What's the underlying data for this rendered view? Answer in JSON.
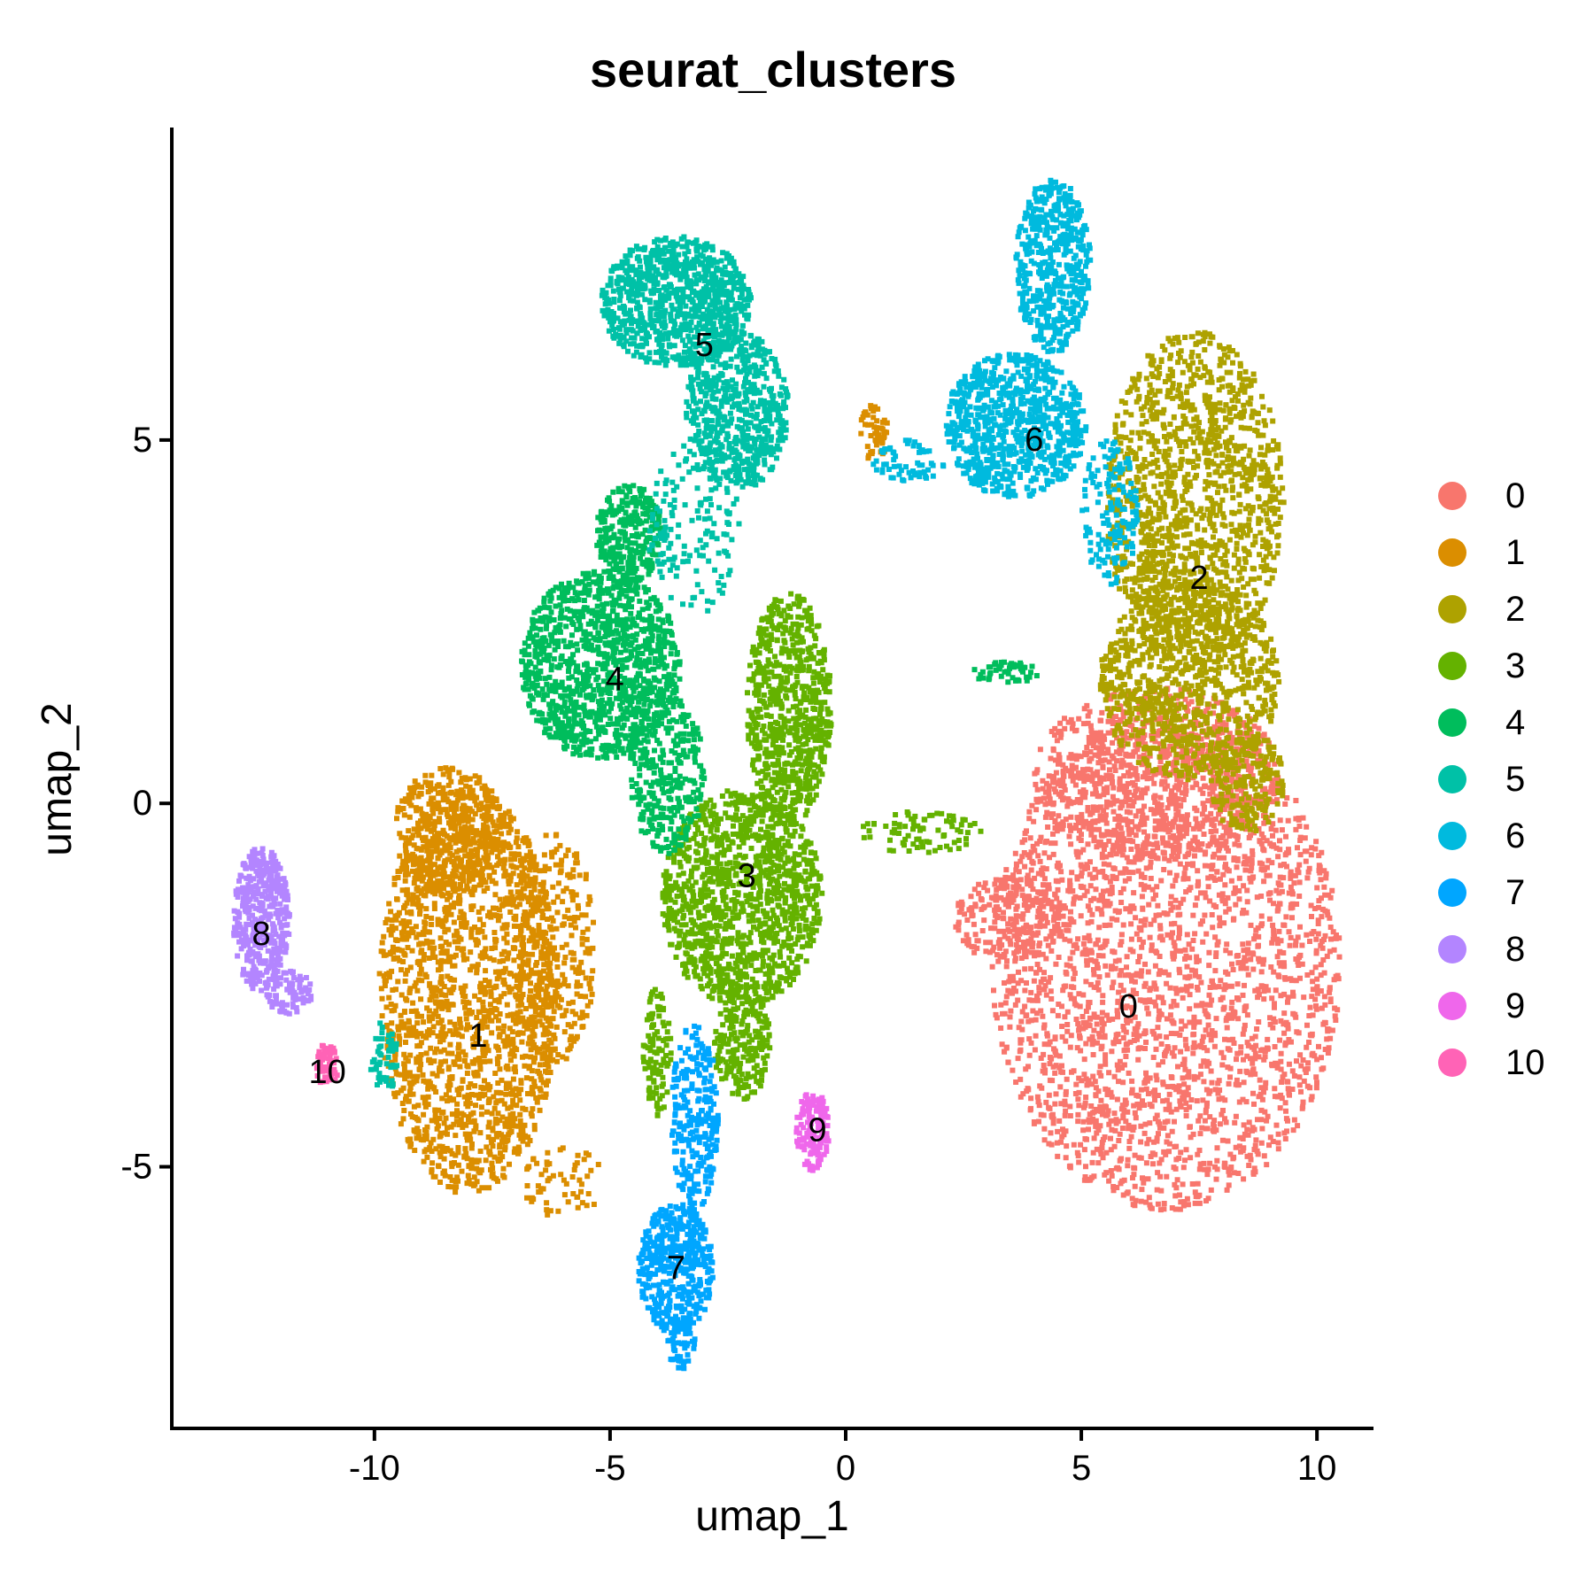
{
  "chart_data": {
    "type": "scatter",
    "title": "seurat_clusters",
    "xlabel": "umap_1",
    "ylabel": "umap_2",
    "xlim": [
      -14.3,
      11.2
    ],
    "ylim": [
      -8.6,
      9.3
    ],
    "xticks": [
      -10,
      -5,
      0,
      5,
      10
    ],
    "yticks": [
      -5,
      0,
      5
    ],
    "xtick_labels": [
      "-10",
      "-5",
      "0",
      "5",
      "10"
    ],
    "ytick_labels": [
      "-5",
      "0",
      "5"
    ],
    "grid": false,
    "legend_position": "right",
    "series": [
      {
        "name": "0",
        "color": "#F8766D",
        "label_x": 6.0,
        "label_y": -2.8,
        "blobs": [
          {
            "cx": 6.8,
            "cy": -2.2,
            "rx": 3.7,
            "ry": 3.4,
            "n": 2600
          },
          {
            "cx": 6.6,
            "cy": 0.4,
            "rx": 2.6,
            "ry": 1.2,
            "n": 700
          },
          {
            "cx": 3.5,
            "cy": -1.6,
            "rx": 1.2,
            "ry": 0.6,
            "n": 200
          }
        ]
      },
      {
        "name": "1",
        "color": "#DB8E00",
        "label_x": -7.8,
        "label_y": -3.2,
        "blobs": [
          {
            "cx": -8.0,
            "cy": -2.6,
            "rx": 1.9,
            "ry": 2.8,
            "n": 1700
          },
          {
            "cx": -8.4,
            "cy": -0.4,
            "rx": 1.2,
            "ry": 0.9,
            "n": 400
          },
          {
            "cx": -6.2,
            "cy": -2.0,
            "rx": 0.9,
            "ry": 1.6,
            "n": 300
          },
          {
            "cx": -6.0,
            "cy": -5.2,
            "rx": 0.9,
            "ry": 0.5,
            "n": 60
          },
          {
            "cx": 0.6,
            "cy": 5.1,
            "rx": 0.3,
            "ry": 0.4,
            "n": 50
          }
        ]
      },
      {
        "name": "2",
        "color": "#AEA200",
        "label_x": 7.5,
        "label_y": 3.1,
        "blobs": [
          {
            "cx": 7.4,
            "cy": 4.2,
            "rx": 1.9,
            "ry": 2.3,
            "n": 1300
          },
          {
            "cx": 7.3,
            "cy": 1.7,
            "rx": 1.9,
            "ry": 1.4,
            "n": 900
          },
          {
            "cx": 8.5,
            "cy": 0.3,
            "rx": 0.8,
            "ry": 0.7,
            "n": 200
          }
        ]
      },
      {
        "name": "3",
        "color": "#64B200",
        "label_x": -2.1,
        "label_y": -1.0,
        "blobs": [
          {
            "cx": -2.2,
            "cy": -1.3,
            "rx": 1.7,
            "ry": 1.5,
            "n": 1200
          },
          {
            "cx": -1.2,
            "cy": 1.3,
            "rx": 0.9,
            "ry": 1.6,
            "n": 700
          },
          {
            "cx": -2.2,
            "cy": -3.3,
            "rx": 0.6,
            "ry": 0.8,
            "n": 200
          },
          {
            "cx": -4.0,
            "cy": -3.4,
            "rx": 0.3,
            "ry": 0.9,
            "n": 100
          },
          {
            "cx": 1.6,
            "cy": -0.4,
            "rx": 1.3,
            "ry": 0.3,
            "n": 80
          }
        ]
      },
      {
        "name": "4",
        "color": "#00BD5C",
        "label_x": -4.9,
        "label_y": 1.7,
        "blobs": [
          {
            "cx": -5.2,
            "cy": 1.9,
            "rx": 1.7,
            "ry": 1.3,
            "n": 1100
          },
          {
            "cx": -4.6,
            "cy": 3.7,
            "rx": 0.7,
            "ry": 0.7,
            "n": 300
          },
          {
            "cx": -3.8,
            "cy": 0.4,
            "rx": 0.8,
            "ry": 1.1,
            "n": 300
          },
          {
            "cx": 3.4,
            "cy": 1.8,
            "rx": 0.7,
            "ry": 0.15,
            "n": 50
          }
        ]
      },
      {
        "name": "5",
        "color": "#00C1A7",
        "label_x": -3.0,
        "label_y": 6.3,
        "blobs": [
          {
            "cx": -3.6,
            "cy": 6.9,
            "rx": 1.6,
            "ry": 0.9,
            "n": 900
          },
          {
            "cx": -2.3,
            "cy": 5.4,
            "rx": 1.1,
            "ry": 1.1,
            "n": 600
          },
          {
            "cx": -3.2,
            "cy": 3.8,
            "rx": 1.0,
            "ry": 1.2,
            "n": 150
          },
          {
            "cx": -9.8,
            "cy": -3.5,
            "rx": 0.3,
            "ry": 0.5,
            "n": 50
          }
        ]
      },
      {
        "name": "6",
        "color": "#00BADE",
        "label_x": 4.0,
        "label_y": 5.0,
        "blobs": [
          {
            "cx": 3.6,
            "cy": 5.2,
            "rx": 1.5,
            "ry": 1.0,
            "n": 800
          },
          {
            "cx": 4.4,
            "cy": 7.4,
            "rx": 0.8,
            "ry": 1.2,
            "n": 500
          },
          {
            "cx": 5.6,
            "cy": 4.0,
            "rx": 0.6,
            "ry": 1.0,
            "n": 150
          },
          {
            "cx": 1.3,
            "cy": 4.7,
            "rx": 0.8,
            "ry": 0.3,
            "n": 60
          }
        ]
      },
      {
        "name": "7",
        "color": "#00A6FF",
        "label_x": -3.6,
        "label_y": -6.4,
        "blobs": [
          {
            "cx": -3.6,
            "cy": -6.4,
            "rx": 0.8,
            "ry": 0.9,
            "n": 450
          },
          {
            "cx": -3.2,
            "cy": -4.3,
            "rx": 0.5,
            "ry": 1.3,
            "n": 250
          },
          {
            "cx": -3.5,
            "cy": -7.4,
            "rx": 0.3,
            "ry": 0.4,
            "n": 60
          }
        ]
      },
      {
        "name": "8",
        "color": "#B385FF",
        "label_x": -12.4,
        "label_y": -1.8,
        "blobs": [
          {
            "cx": -12.4,
            "cy": -1.6,
            "rx": 0.6,
            "ry": 1.0,
            "n": 400
          },
          {
            "cx": -11.8,
            "cy": -2.6,
            "rx": 0.5,
            "ry": 0.3,
            "n": 80
          }
        ]
      },
      {
        "name": "9",
        "color": "#EF67EB",
        "label_x": -0.6,
        "label_y": -4.5,
        "blobs": [
          {
            "cx": -0.7,
            "cy": -4.5,
            "rx": 0.35,
            "ry": 0.55,
            "n": 140
          }
        ]
      },
      {
        "name": "10",
        "color": "#FF63B6",
        "label_x": -11.0,
        "label_y": -3.7,
        "blobs": [
          {
            "cx": -11.0,
            "cy": -3.6,
            "rx": 0.25,
            "ry": 0.3,
            "n": 60
          }
        ]
      }
    ]
  }
}
